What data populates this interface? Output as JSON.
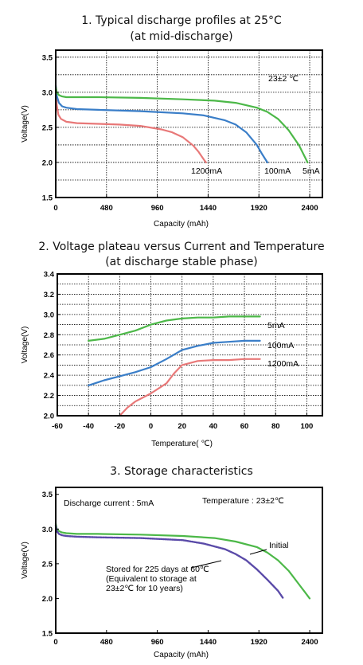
{
  "chart_data": [
    {
      "type": "line",
      "title": "1. Typical discharge profiles at 25°C",
      "subtitle": "(at mid-discharge)",
      "xlabel": "Capacity (mAh)",
      "ylabel": "Voltage(V)",
      "xlim": [
        0,
        2520
      ],
      "ylim": [
        1.5,
        3.6
      ],
      "x_ticks": [
        0,
        480,
        960,
        1440,
        1920,
        2400
      ],
      "y_ticks": [
        1.5,
        2.0,
        2.5,
        3.0,
        3.5
      ],
      "grid": true,
      "annotation": "23±2 ℃",
      "series": [
        {
          "name": "1200mA",
          "color": "#e87878",
          "x": [
            0,
            10,
            25,
            50,
            100,
            200,
            400,
            600,
            800,
            1000,
            1100,
            1200,
            1300,
            1350,
            1400,
            1420
          ],
          "y": [
            3.05,
            2.82,
            2.68,
            2.62,
            2.58,
            2.56,
            2.55,
            2.54,
            2.52,
            2.47,
            2.43,
            2.36,
            2.24,
            2.15,
            2.04,
            2.0
          ]
        },
        {
          "name": "100mA",
          "color": "#3a7ec8",
          "x": [
            0,
            10,
            30,
            60,
            100,
            200,
            400,
            800,
            1200,
            1400,
            1600,
            1700,
            1800,
            1900,
            1950,
            2000
          ],
          "y": [
            3.1,
            2.95,
            2.85,
            2.8,
            2.78,
            2.76,
            2.75,
            2.73,
            2.7,
            2.67,
            2.6,
            2.54,
            2.43,
            2.25,
            2.12,
            2.0
          ]
        },
        {
          "name": "5mA",
          "color": "#4cb848",
          "x": [
            0,
            10,
            30,
            60,
            100,
            200,
            400,
            800,
            1200,
            1500,
            1700,
            1900,
            2000,
            2100,
            2200,
            2300,
            2380
          ],
          "y": [
            3.08,
            3.0,
            2.96,
            2.94,
            2.93,
            2.93,
            2.93,
            2.92,
            2.9,
            2.88,
            2.85,
            2.78,
            2.72,
            2.62,
            2.46,
            2.24,
            2.0
          ]
        }
      ]
    },
    {
      "type": "line",
      "title": "2. Voltage plateau versus Current and Temperature",
      "subtitle": "(at discharge stable phase)",
      "xlabel": "Temperature( ℃)",
      "ylabel": "Voltage(V)",
      "xlim": [
        -60,
        110
      ],
      "ylim": [
        2.0,
        3.4
      ],
      "x_ticks": [
        -60,
        -40,
        -20,
        0,
        20,
        40,
        60,
        80,
        100
      ],
      "y_ticks": [
        2.0,
        2.2,
        2.4,
        2.6,
        2.8,
        3.0,
        3.2,
        3.4
      ],
      "grid": true,
      "series": [
        {
          "name": "5mA",
          "color": "#4cb848",
          "x": [
            -40,
            -30,
            -20,
            -10,
            0,
            10,
            20,
            30,
            40,
            50,
            60,
            70
          ],
          "y": [
            2.74,
            2.76,
            2.8,
            2.84,
            2.9,
            2.94,
            2.96,
            2.97,
            2.97,
            2.98,
            2.98,
            2.98
          ]
        },
        {
          "name": "100mA",
          "color": "#3a7ec8",
          "x": [
            -40,
            -30,
            -20,
            -10,
            0,
            10,
            20,
            30,
            40,
            50,
            60,
            70
          ],
          "y": [
            2.3,
            2.35,
            2.39,
            2.43,
            2.48,
            2.56,
            2.65,
            2.69,
            2.72,
            2.73,
            2.74,
            2.74
          ]
        },
        {
          "name": "1200mA",
          "color": "#e87878",
          "x": [
            -20,
            -15,
            -10,
            0,
            10,
            15,
            20,
            30,
            40,
            50,
            60,
            70
          ],
          "y": [
            2.0,
            2.08,
            2.14,
            2.22,
            2.32,
            2.42,
            2.5,
            2.54,
            2.55,
            2.55,
            2.56,
            2.56
          ]
        }
      ]
    },
    {
      "type": "line",
      "title": "3. Storage characteristics",
      "xlabel": "Capacity (mAh)",
      "ylabel": "Voltage(V)",
      "xlim": [
        0,
        2520
      ],
      "ylim": [
        1.5,
        3.6
      ],
      "x_ticks": [
        0,
        480,
        960,
        1440,
        1920,
        2400
      ],
      "y_ticks": [
        1.5,
        2.0,
        2.5,
        3.0,
        3.5
      ],
      "grid": false,
      "annotations": [
        "Discharge current : 5mA",
        "Temperature : 23±2℃"
      ],
      "series": [
        {
          "name": "Initial",
          "color": "#4cb848",
          "x": [
            0,
            10,
            30,
            60,
            100,
            200,
            400,
            800,
            1200,
            1500,
            1700,
            1900,
            2000,
            2100,
            2200,
            2300,
            2400
          ],
          "y": [
            3.08,
            3.0,
            2.97,
            2.95,
            2.94,
            2.93,
            2.93,
            2.92,
            2.9,
            2.87,
            2.82,
            2.74,
            2.66,
            2.55,
            2.4,
            2.2,
            2.0
          ]
        },
        {
          "name": "Stored for 225 days at 60℃",
          "name_lines": [
            "Stored for 225 days at 60℃",
            "(Equivalent to storage at",
            "23±2℃ for 10 years)"
          ],
          "color": "#5a4aa8",
          "x": [
            0,
            10,
            30,
            60,
            100,
            200,
            400,
            800,
            1200,
            1400,
            1600,
            1700,
            1800,
            1900,
            2000,
            2100,
            2150
          ],
          "y": [
            3.05,
            2.97,
            2.93,
            2.91,
            2.9,
            2.89,
            2.88,
            2.87,
            2.84,
            2.79,
            2.71,
            2.64,
            2.55,
            2.42,
            2.27,
            2.11,
            2.0
          ]
        }
      ]
    }
  ]
}
